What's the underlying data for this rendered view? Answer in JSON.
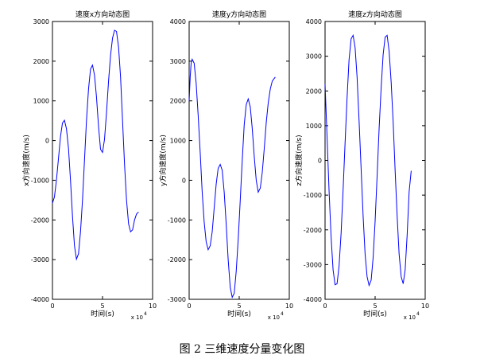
{
  "caption": "图 2 三维速度分量变化图",
  "chart_data": [
    {
      "type": "line",
      "title": "速度x方向动态图",
      "xlabel": "时间(s)",
      "ylabel": "x方向速度(m/s)",
      "x_multiplier_label": "x 10",
      "x_multiplier_exp": "4",
      "xlim": [
        0,
        10
      ],
      "ylim": [
        -4000,
        3000
      ],
      "xticks": [
        0,
        5,
        10
      ],
      "yticks": [
        -4000,
        -3000,
        -2000,
        -1000,
        0,
        1000,
        2000,
        3000
      ],
      "color": "#0000ff",
      "series": [
        {
          "x": [
            0,
            0.2,
            0.4,
            0.6,
            0.8,
            1.0,
            1.2,
            1.4,
            1.6,
            1.8,
            2.0,
            2.2,
            2.4,
            2.6,
            2.8,
            3.0,
            3.2,
            3.4,
            3.6,
            3.8,
            4.0,
            4.2,
            4.4,
            4.6,
            4.8,
            5.0,
            5.2,
            5.4,
            5.6,
            5.8,
            6.0,
            6.2,
            6.4,
            6.6,
            6.8,
            7.0,
            7.2,
            7.4,
            7.6,
            7.8,
            8.0,
            8.2,
            8.4,
            8.6
          ],
          "y": [
            -1580,
            -1420,
            -1000,
            -450,
            100,
            440,
            510,
            300,
            -200,
            -1000,
            -1900,
            -2650,
            -2990,
            -2850,
            -2300,
            -1500,
            -500,
            500,
            1300,
            1800,
            1900,
            1650,
            1100,
            350,
            -220,
            -300,
            30,
            700,
            1500,
            2150,
            2580,
            2780,
            2750,
            2350,
            1600,
            500,
            -600,
            -1500,
            -2100,
            -2300,
            -2250,
            -2000,
            -1850,
            -1800
          ]
        }
      ]
    },
    {
      "type": "line",
      "title": "速度y方向动态图",
      "xlabel": "时间(s)",
      "ylabel": "y方向速度(m/s)",
      "x_multiplier_label": "x 10",
      "x_multiplier_exp": "4",
      "xlim": [
        0,
        10
      ],
      "ylim": [
        -3000,
        4000
      ],
      "xticks": [
        0,
        5,
        10
      ],
      "yticks": [
        -3000,
        -2000,
        -1000,
        0,
        1000,
        2000,
        3000,
        4000
      ],
      "color": "#0000ff",
      "series": [
        {
          "x": [
            0,
            0.1,
            0.2,
            0.3,
            0.5,
            0.7,
            0.9,
            1.1,
            1.3,
            1.5,
            1.7,
            1.9,
            2.1,
            2.3,
            2.5,
            2.7,
            2.9,
            3.1,
            3.3,
            3.5,
            3.7,
            3.9,
            4.1,
            4.3,
            4.5,
            4.7,
            4.9,
            5.1,
            5.3,
            5.5,
            5.7,
            5.9,
            6.1,
            6.3,
            6.5,
            6.7,
            6.9,
            7.1,
            7.3,
            7.5,
            7.7,
            7.9,
            8.1,
            8.3,
            8.6
          ],
          "y": [
            2000,
            2600,
            2950,
            3050,
            2950,
            2450,
            1650,
            700,
            -300,
            -1050,
            -1550,
            -1750,
            -1650,
            -1300,
            -700,
            -100,
            300,
            400,
            250,
            -300,
            -1100,
            -2000,
            -2700,
            -2950,
            -2850,
            -2300,
            -1500,
            -500,
            500,
            1400,
            1900,
            2050,
            1850,
            1300,
            600,
            0,
            -300,
            -200,
            200,
            800,
            1450,
            1950,
            2300,
            2500,
            2600
          ]
        }
      ]
    },
    {
      "type": "line",
      "title": "速度z方向动态图",
      "xlabel": "时间(s)",
      "ylabel": "z方向速度(m/s)",
      "x_multiplier_label": "x 10",
      "x_multiplier_exp": "4",
      "xlim": [
        0,
        10
      ],
      "ylim": [
        -4000,
        4000
      ],
      "xticks": [
        0,
        5,
        10
      ],
      "yticks": [
        -4000,
        -3000,
        -2000,
        -1000,
        0,
        1000,
        2000,
        3000,
        4000
      ],
      "color": "#0000ff",
      "series": [
        {
          "x": [
            0,
            0.2,
            0.4,
            0.6,
            0.8,
            1.0,
            1.2,
            1.4,
            1.6,
            1.8,
            2.0,
            2.2,
            2.4,
            2.6,
            2.8,
            3.0,
            3.2,
            3.4,
            3.6,
            3.8,
            4.0,
            4.2,
            4.4,
            4.6,
            4.8,
            5.0,
            5.2,
            5.4,
            5.6,
            5.8,
            6.0,
            6.2,
            6.4,
            6.6,
            6.8,
            7.0,
            7.2,
            7.4,
            7.6,
            7.8,
            8.0,
            8.2,
            8.4,
            8.6
          ],
          "y": [
            2200,
            700,
            -850,
            -2200,
            -3150,
            -3580,
            -3550,
            -3050,
            -2100,
            -850,
            500,
            1800,
            2900,
            3500,
            3600,
            3250,
            2400,
            1150,
            -250,
            -1600,
            -2700,
            -3350,
            -3600,
            -3450,
            -2800,
            -1750,
            -450,
            900,
            2100,
            3050,
            3550,
            3600,
            3150,
            2250,
            1100,
            -300,
            -1600,
            -2700,
            -3350,
            -3550,
            -3150,
            -2150,
            -900,
            -300
          ]
        }
      ]
    }
  ]
}
